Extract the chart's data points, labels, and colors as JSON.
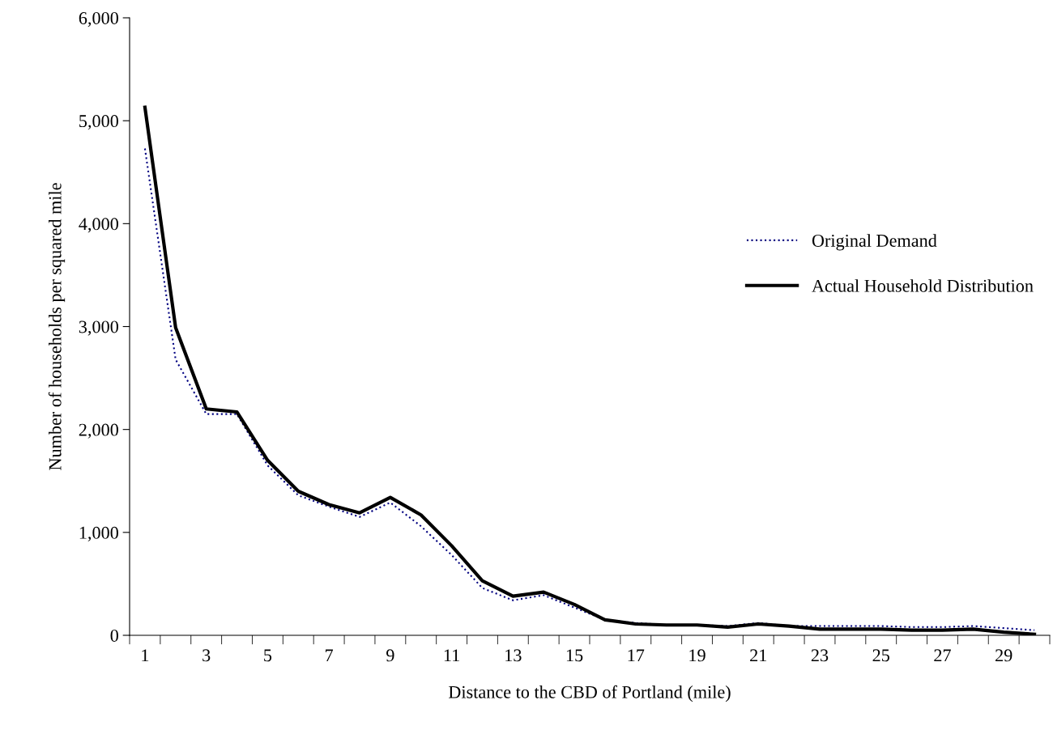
{
  "chart_data": {
    "type": "line",
    "xlabel": "Distance to the CBD of Portland (mile)",
    "ylabel": "Number of households per squared mile",
    "categories": [
      "1",
      null,
      "3",
      null,
      "5",
      null,
      "7",
      null,
      "9",
      null,
      "11",
      null,
      "13",
      null,
      "15",
      null,
      "17",
      null,
      "19",
      null,
      "21",
      null,
      "23",
      null,
      "25",
      null,
      "27",
      null,
      "29",
      null
    ],
    "series": [
      {
        "name": "Original Demand",
        "color": "#000080",
        "line_style": "dotted",
        "values": [
          4730,
          2680,
          2150,
          2150,
          1650,
          1360,
          1250,
          1150,
          1290,
          1060,
          780,
          460,
          340,
          390,
          270,
          150,
          120,
          100,
          100,
          90,
          120,
          90,
          90,
          90,
          90,
          80,
          80,
          90,
          70,
          50
        ]
      },
      {
        "name": "Actual Household Distribution",
        "color": "#000000",
        "line_style": "solid",
        "values": [
          5130,
          2990,
          2200,
          2170,
          1700,
          1400,
          1270,
          1190,
          1340,
          1170,
          870,
          530,
          380,
          420,
          300,
          150,
          110,
          100,
          100,
          80,
          110,
          90,
          60,
          60,
          60,
          50,
          50,
          60,
          30,
          10
        ]
      }
    ],
    "ylim": [
      0,
      6000
    ],
    "yticks": [
      0,
      {
        "value": 1000,
        "label": "1,000"
      },
      {
        "value": 2000,
        "label": "2,000"
      },
      {
        "value": 3000,
        "label": "3,000"
      },
      {
        "value": 4000,
        "label": "4,000"
      },
      {
        "value": 5000,
        "label": "5,000"
      },
      {
        "value": 6000,
        "label": "6,000"
      }
    ],
    "grid": false,
    "legend": "right",
    "marker": "none"
  }
}
